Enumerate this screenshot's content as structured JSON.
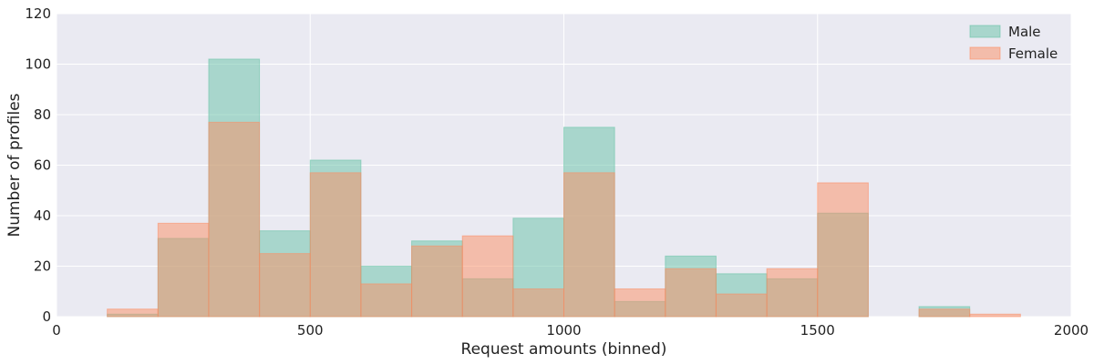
{
  "chart_data": {
    "type": "bar",
    "style": "overlaid-histogram",
    "xlabel": "Request amounts (binned)",
    "ylabel": "Number of profiles",
    "xlim": [
      0,
      2000
    ],
    "ylim": [
      0,
      120
    ],
    "x_ticks": [
      "0",
      "500",
      "1000",
      "1500",
      "2000"
    ],
    "y_ticks": [
      "0",
      "20",
      "40",
      "60",
      "80",
      "100",
      "120"
    ],
    "grid": true,
    "legend_position": "top-right",
    "bin_edges": [
      100,
      200,
      300,
      400,
      500,
      600,
      700,
      800,
      900,
      1000,
      1100,
      1200,
      1300,
      1400,
      1500,
      1600,
      1700,
      1800,
      1900
    ],
    "series": [
      {
        "name": "Male",
        "color": "#66c2a5",
        "values": [
          1,
          31,
          102,
          34,
          62,
          20,
          30,
          15,
          39,
          75,
          6,
          24,
          17,
          15,
          41,
          0,
          4,
          0
        ]
      },
      {
        "name": "Female",
        "color": "#fc8d62",
        "values": [
          3,
          37,
          77,
          25,
          57,
          13,
          28,
          32,
          11,
          57,
          11,
          19,
          9,
          19,
          53,
          0,
          3,
          1
        ]
      }
    ],
    "background_color": "#eaeaf2",
    "overlap_color": "#d1b08f"
  }
}
